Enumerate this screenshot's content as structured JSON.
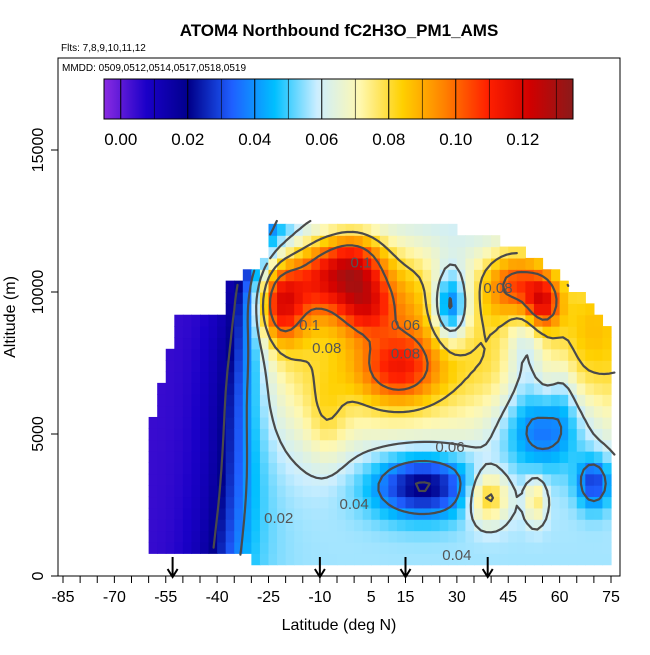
{
  "chart_data": {
    "type": "heatmap",
    "title": "ATOM4 Northbound fC2H3O_PM1_AMS",
    "flights_label": "Flts: 7,8,9,10,11,12",
    "dates_label": "MMDD: 0509,0512,0514,0517,0518,0519",
    "xlabel": "Latitude (deg N)",
    "ylabel": "Altitude (m)",
    "xlim": [
      -90,
      90
    ],
    "ylim": [
      0,
      17500
    ],
    "x_ticks": [
      -85,
      -70,
      -55,
      -40,
      -25,
      -10,
      5,
      15,
      30,
      45,
      60,
      75
    ],
    "y_ticks": [
      0,
      5000,
      10000,
      15000
    ],
    "colorbar": {
      "range": [
        -0.005,
        0.135
      ],
      "ticks": [
        "0.00",
        "0.02",
        "0.04",
        "0.06",
        "0.08",
        "0.10",
        "0.12"
      ],
      "tick_values": [
        0.0,
        0.02,
        0.04,
        0.06,
        0.08,
        0.1,
        0.12
      ],
      "colors": [
        "#8a2be2",
        "#1a00c8",
        "#00008b",
        "#1f5fff",
        "#00bfff",
        "#cceeff",
        "#fff8b0",
        "#ffd000",
        "#ff8000",
        "#ff2000",
        "#d00000",
        "#8b1a1a"
      ]
    },
    "contour_labels": [
      {
        "text": "0.02",
        "lat": -22,
        "alt": 2000
      },
      {
        "text": "0.04",
        "lat": 0,
        "alt": 2500
      },
      {
        "text": "0.04",
        "lat": 30,
        "alt": 700
      },
      {
        "text": "0.06",
        "lat": 28,
        "alt": 4500
      },
      {
        "text": "0.06",
        "lat": 15,
        "alt": 8800
      },
      {
        "text": "0.08",
        "lat": -8,
        "alt": 8000
      },
      {
        "text": "0.08",
        "lat": 15,
        "alt": 7800
      },
      {
        "text": "0.08",
        "lat": 42,
        "alt": 10100
      },
      {
        "text": "0.1",
        "lat": 2,
        "alt": 11000
      },
      {
        "text": "0.1",
        "lat": -13,
        "alt": 8800
      }
    ],
    "flight_markers_lat": [
      -53,
      -10,
      15,
      39
    ]
  }
}
